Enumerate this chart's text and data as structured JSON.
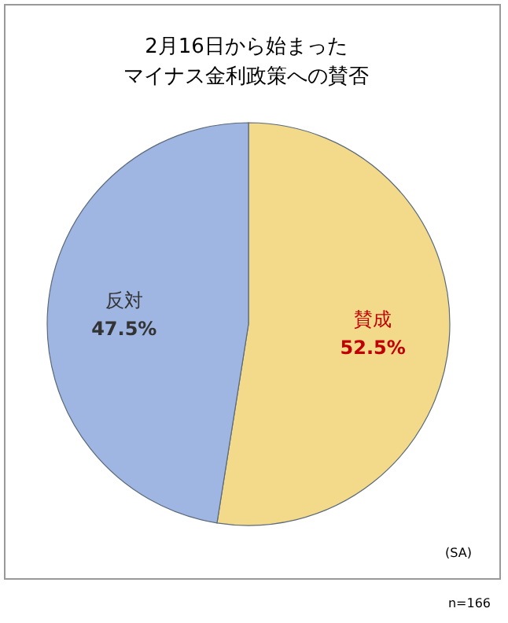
{
  "chart_data": {
    "type": "pie",
    "title": "2月16日から始まった",
    "subtitle": "マイナス金利政策への賛否",
    "categories": [
      "賛成",
      "反対"
    ],
    "values": [
      52.5,
      47.5
    ],
    "value_labels": [
      "52.5%",
      "47.5%"
    ],
    "colors": [
      "#f3d98a",
      "#9fb5e2"
    ],
    "annotations": [
      "(SA)",
      "n=166"
    ]
  }
}
